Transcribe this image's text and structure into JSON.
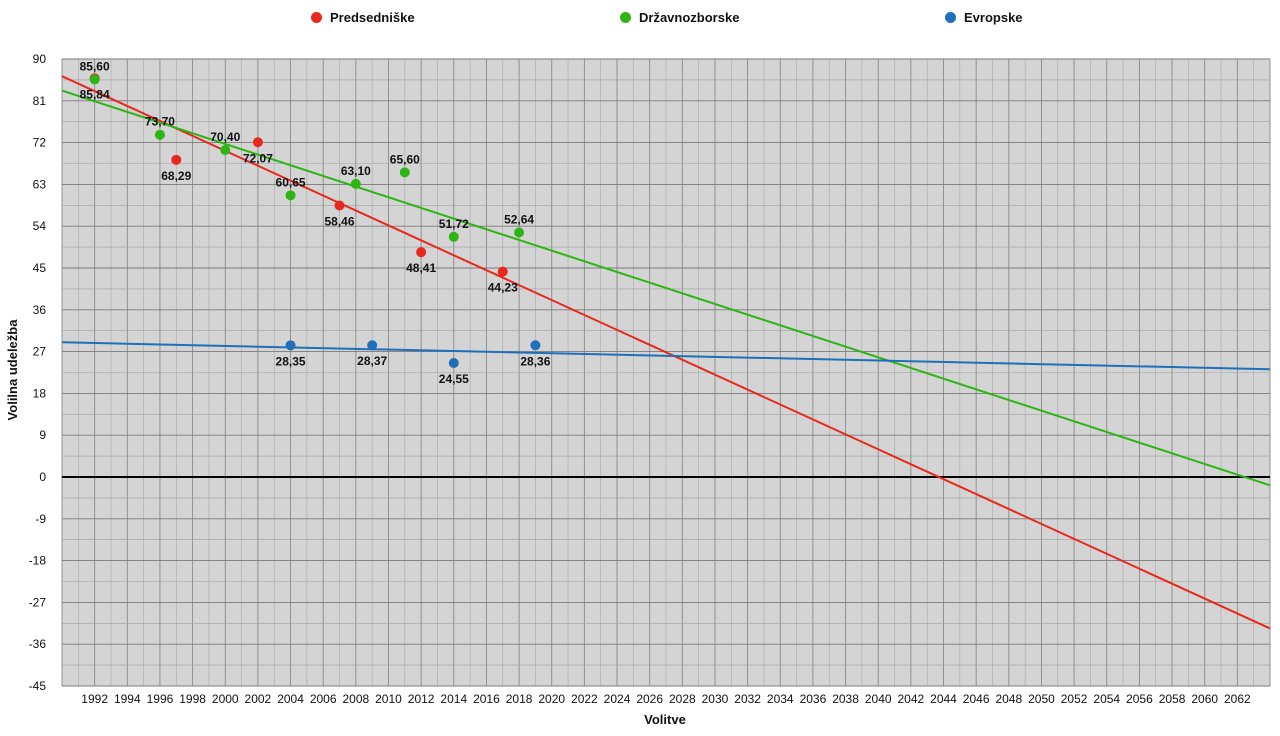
{
  "chart_data": {
    "type": "scatter",
    "title": "",
    "xlabel": "Volitve",
    "ylabel": "Volilna udeležba",
    "xlim": [
      1990,
      2064
    ],
    "ylim": [
      -45,
      90
    ],
    "yticks": [
      90,
      81,
      72,
      63,
      54,
      45,
      36,
      27,
      18,
      9,
      0,
      -9,
      -18,
      -27,
      -36,
      -45
    ],
    "ytick_labels": [
      "90",
      "81",
      "72",
      "63",
      "54",
      "45",
      "36",
      "27",
      "18",
      "9",
      "0",
      "-9",
      "-18",
      "-27",
      "-36",
      "-45"
    ],
    "xticks": [
      1992,
      1994,
      1996,
      1998,
      2000,
      2002,
      2004,
      2006,
      2008,
      2010,
      2012,
      2014,
      2016,
      2018,
      2020,
      2022,
      2024,
      2026,
      2028,
      2030,
      2032,
      2034,
      2036,
      2038,
      2040,
      2042,
      2044,
      2046,
      2048,
      2050,
      2052,
      2054,
      2056,
      2058,
      2060,
      2062
    ],
    "xtick_labels": [
      "1992",
      "1994",
      "1996",
      "1998",
      "2000",
      "2002",
      "2004",
      "2006",
      "2008",
      "2010",
      "2012",
      "2014",
      "2016",
      "2018",
      "2020",
      "2022",
      "2024",
      "2026",
      "2028",
      "2030",
      "2032",
      "2034",
      "2036",
      "2038",
      "2040",
      "2042",
      "2044",
      "2046",
      "2048",
      "2050",
      "2052",
      "2054",
      "2056",
      "2058",
      "2060",
      "2062"
    ],
    "grid": true,
    "legend_position": "top",
    "series": [
      {
        "name": "Predsedniške",
        "color": "#e8271d",
        "points": [
          {
            "x": 1992,
            "y": 85.84,
            "label": "85,84"
          },
          {
            "x": 1997,
            "y": 68.29,
            "label": "68,29"
          },
          {
            "x": 2002,
            "y": 72.07,
            "label": "72,07"
          },
          {
            "x": 2007,
            "y": 58.46,
            "label": "58,46"
          },
          {
            "x": 2012,
            "y": 48.41,
            "label": "48,41"
          },
          {
            "x": 2017,
            "y": 44.23,
            "label": "44,23"
          }
        ],
        "trend": [
          {
            "x": 1990,
            "y": 86.3
          },
          {
            "x": 2064,
            "y": -32.6
          }
        ]
      },
      {
        "name": "Državnozborske",
        "color": "#2db514",
        "points": [
          {
            "x": 1992,
            "y": 85.6,
            "label": "85,60"
          },
          {
            "x": 1996,
            "y": 73.7,
            "label": "73,70"
          },
          {
            "x": 2000,
            "y": 70.4,
            "label": "70,40"
          },
          {
            "x": 2004,
            "y": 60.65,
            "label": "60,65"
          },
          {
            "x": 2008,
            "y": 63.1,
            "label": "63,10"
          },
          {
            "x": 2011,
            "y": 65.6,
            "label": "65,60"
          },
          {
            "x": 2014,
            "y": 51.72,
            "label": "51,72"
          },
          {
            "x": 2018,
            "y": 52.64,
            "label": "52,64"
          }
        ],
        "trend": [
          {
            "x": 1990,
            "y": 83.2
          },
          {
            "x": 2064,
            "y": -1.8
          }
        ]
      },
      {
        "name": "Evropske",
        "color": "#1f6fb9",
        "points": [
          {
            "x": 2004,
            "y": 28.35,
            "label": "28,35"
          },
          {
            "x": 2009,
            "y": 28.37,
            "label": "28,37"
          },
          {
            "x": 2014,
            "y": 24.55,
            "label": "24,55"
          },
          {
            "x": 2019,
            "y": 28.36,
            "label": "28,36"
          }
        ],
        "trend": [
          {
            "x": 1990,
            "y": 29.0
          },
          {
            "x": 2064,
            "y": 23.2
          }
        ]
      }
    ]
  }
}
